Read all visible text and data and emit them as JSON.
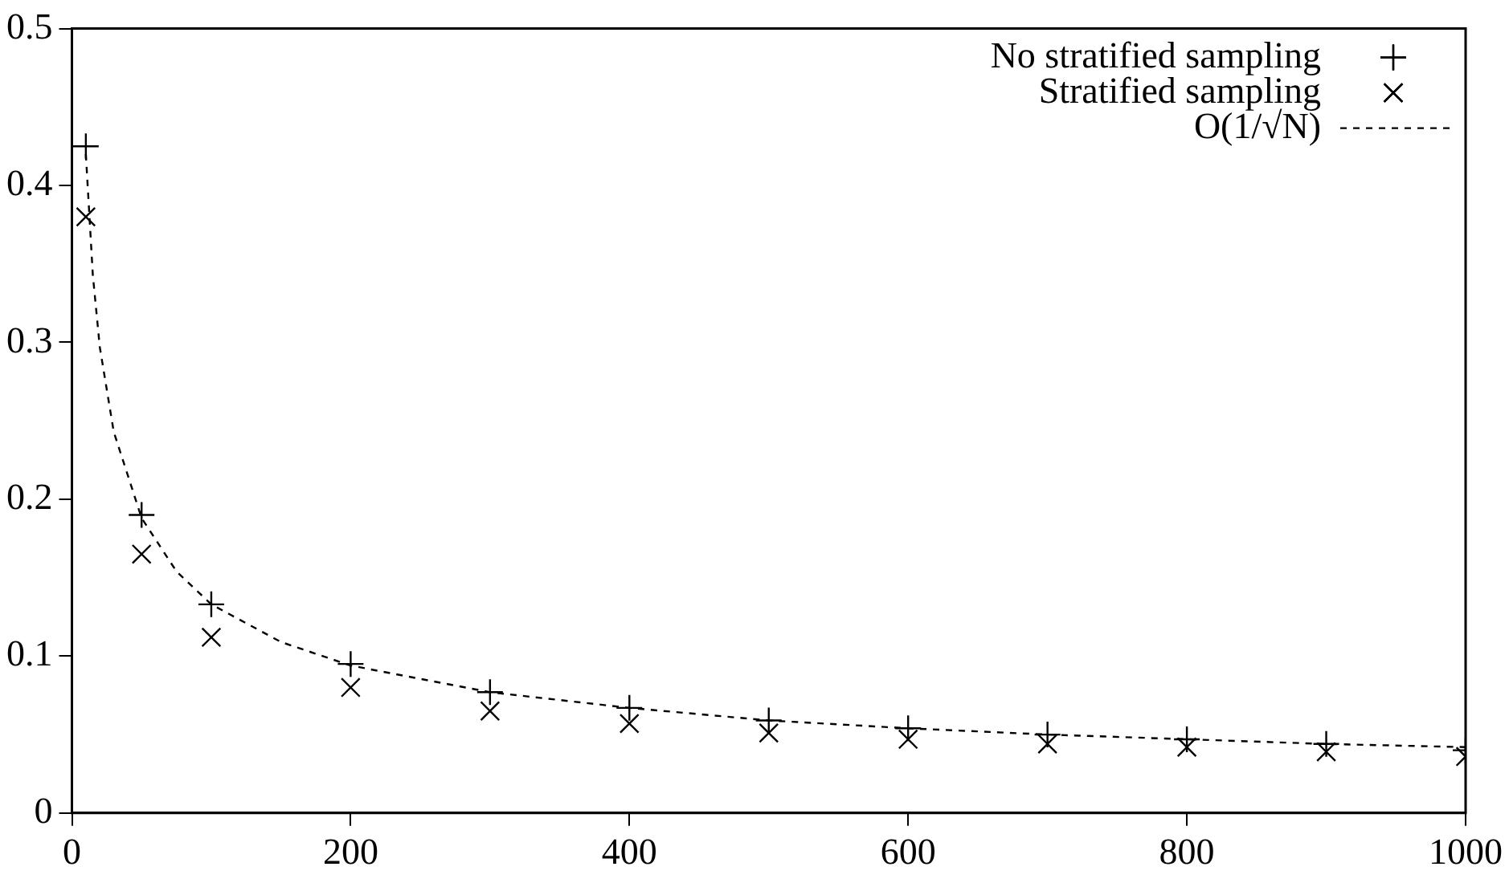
{
  "chart_data": {
    "type": "scatter",
    "xlim": [
      0,
      1000
    ],
    "xticks": [
      0,
      200,
      400,
      600,
      800,
      1000
    ],
    "ylim": [
      0,
      0.5
    ],
    "yticks": [
      0,
      0.1,
      0.2,
      0.3,
      0.4,
      0.5
    ],
    "grid": false,
    "legend": "top right",
    "series": [
      {
        "name": "No stratified sampling",
        "color": "#000000",
        "marker": "cross",
        "x": [
          10,
          50,
          100,
          200,
          300,
          400,
          500,
          600,
          700,
          800,
          900,
          1000
        ],
        "values": [
          0.425,
          0.19,
          0.133,
          0.095,
          0.077,
          0.067,
          0.059,
          0.054,
          0.05,
          0.047,
          0.044,
          0.04
        ]
      },
      {
        "name": "Stratified sampling",
        "color": "#000000",
        "marker": "x",
        "x": [
          10,
          50,
          100,
          200,
          300,
          400,
          500,
          600,
          700,
          800,
          900,
          1000
        ],
        "values": [
          0.38,
          0.165,
          0.112,
          0.08,
          0.065,
          0.057,
          0.051,
          0.047,
          0.044,
          0.042,
          0.039,
          0.036
        ]
      },
      {
        "name": "O(1/√N)",
        "type": "line",
        "color": "#000000",
        "marker": "none",
        "line_style": "dashed",
        "x": [
          10,
          15,
          20,
          30,
          50,
          75,
          100,
          150,
          200,
          300,
          400,
          500,
          600,
          700,
          800,
          900,
          1000
        ],
        "values": [
          0.42,
          0.343,
          0.297,
          0.243,
          0.188,
          0.154,
          0.133,
          0.109,
          0.094,
          0.077,
          0.067,
          0.059,
          0.054,
          0.05,
          0.047,
          0.044,
          0.042
        ]
      }
    ]
  }
}
